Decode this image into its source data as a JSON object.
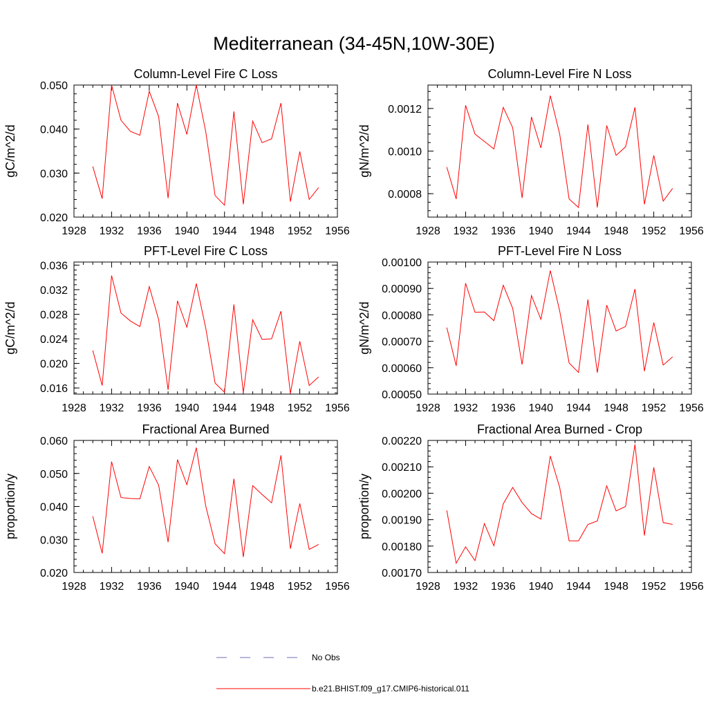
{
  "title": "Mediterranean (34-45N,10W-30E)",
  "colors": {
    "model": "#ff0000",
    "obs": "#6b6bb8"
  },
  "legend": [
    {
      "label": "No Obs",
      "style": "dashed",
      "color": "#6b6bb8"
    },
    {
      "label": "b.e21.BHIST.f09_g17.CMIP6-historical.011",
      "style": "solid",
      "color": "#ff0000"
    }
  ],
  "chart_data": [
    {
      "type": "line",
      "title": "Column-Level Fire C Loss",
      "ylabel": "gC/m^2/d",
      "xlim": [
        1928,
        1956
      ],
      "ylim": [
        0.02,
        0.05
      ],
      "xticks": [
        1928,
        1932,
        1936,
        1940,
        1944,
        1948,
        1952,
        1956
      ],
      "yticks": [
        0.02,
        0.03,
        0.04,
        0.05
      ],
      "ytick_labels": [
        "0.020",
        "0.030",
        "0.040",
        "0.050"
      ],
      "x": [
        1930,
        1931,
        1932,
        1933,
        1934,
        1935,
        1936,
        1937,
        1938,
        1939,
        1940,
        1941,
        1942,
        1943,
        1944,
        1945,
        1946,
        1947,
        1948,
        1949,
        1950,
        1951,
        1952,
        1953,
        1954
      ],
      "series": [
        {
          "name": "b.e21.BHIST.f09_g17.CMIP6-historical.011",
          "values": [
            0.0315,
            0.0242,
            0.05,
            0.042,
            0.0395,
            0.0386,
            0.0486,
            0.0428,
            0.0243,
            0.0459,
            0.0388,
            0.05,
            0.0395,
            0.0249,
            0.0227,
            0.044,
            0.0229,
            0.0418,
            0.0369,
            0.0378,
            0.0459,
            0.0235,
            0.0349,
            0.024,
            0.0267
          ]
        }
      ]
    },
    {
      "type": "line",
      "title": "Column-Level Fire N Loss",
      "ylabel": "gN/m^2/d",
      "xlim": [
        1928,
        1956
      ],
      "ylim": [
        0.00069,
        0.00131
      ],
      "xticks": [
        1928,
        1932,
        1936,
        1940,
        1944,
        1948,
        1952,
        1956
      ],
      "yticks": [
        0.0008,
        0.001,
        0.0012
      ],
      "ytick_labels": [
        "0.0008",
        "0.0010",
        "0.0012"
      ],
      "x": [
        1930,
        1931,
        1932,
        1933,
        1934,
        1935,
        1936,
        1937,
        1938,
        1939,
        1940,
        1941,
        1942,
        1943,
        1944,
        1945,
        1946,
        1947,
        1948,
        1949,
        1950,
        1951,
        1952,
        1953,
        1954
      ],
      "series": [
        {
          "name": "b.e21.BHIST.f09_g17.CMIP6-historical.011",
          "values": [
            0.000925,
            0.000775,
            0.001215,
            0.00108,
            0.001045,
            0.00101,
            0.001205,
            0.00111,
            0.00078,
            0.00116,
            0.001015,
            0.00126,
            0.00108,
            0.000775,
            0.000735,
            0.001125,
            0.000735,
            0.00112,
            0.00098,
            0.00102,
            0.001205,
            0.00075,
            0.00098,
            0.000765,
            0.000825
          ]
        }
      ]
    },
    {
      "type": "line",
      "title": "PFT-Level Fire C Loss",
      "ylabel": "gC/m^2/d",
      "xlim": [
        1928,
        1956
      ],
      "ylim": [
        0.015,
        0.0365
      ],
      "xticks": [
        1928,
        1932,
        1936,
        1940,
        1944,
        1948,
        1952,
        1956
      ],
      "yticks": [
        0.016,
        0.02,
        0.024,
        0.028,
        0.032,
        0.036
      ],
      "ytick_labels": [
        "0.016",
        "0.020",
        "0.024",
        "0.028",
        "0.032",
        "0.036"
      ],
      "x": [
        1930,
        1931,
        1932,
        1933,
        1934,
        1935,
        1936,
        1937,
        1938,
        1939,
        1940,
        1941,
        1942,
        1943,
        1944,
        1945,
        1946,
        1947,
        1948,
        1949,
        1950,
        1951,
        1952,
        1953,
        1954
      ],
      "series": [
        {
          "name": "b.e21.BHIST.f09_g17.CMIP6-historical.011",
          "values": [
            0.0221,
            0.0164,
            0.0343,
            0.0282,
            0.0269,
            0.026,
            0.0325,
            0.0271,
            0.0157,
            0.0302,
            0.0259,
            0.033,
            0.0258,
            0.0168,
            0.0153,
            0.0296,
            0.0152,
            0.0271,
            0.0239,
            0.024,
            0.0285,
            0.0151,
            0.0236,
            0.0164,
            0.0178
          ]
        }
      ]
    },
    {
      "type": "line",
      "title": "PFT-Level Fire N Loss",
      "ylabel": "gN/m^2/d",
      "xlim": [
        1928,
        1956
      ],
      "ylim": [
        0.0005,
        0.001
      ],
      "xticks": [
        1928,
        1932,
        1936,
        1940,
        1944,
        1948,
        1952,
        1956
      ],
      "yticks": [
        0.0005,
        0.0006,
        0.0007,
        0.0008,
        0.0009,
        0.001
      ],
      "ytick_labels": [
        "0.00050",
        "0.00060",
        "0.00070",
        "0.00080",
        "0.00090",
        "0.00100"
      ],
      "x": [
        1930,
        1931,
        1932,
        1933,
        1934,
        1935,
        1936,
        1937,
        1938,
        1939,
        1940,
        1941,
        1942,
        1943,
        1944,
        1945,
        1946,
        1947,
        1948,
        1949,
        1950,
        1951,
        1952,
        1953,
        1954
      ],
      "series": [
        {
          "name": "b.e21.BHIST.f09_g17.CMIP6-historical.011",
          "values": [
            0.000752,
            0.000607,
            0.00092,
            0.00081,
            0.000811,
            0.000778,
            0.000912,
            0.000825,
            0.000612,
            0.000873,
            0.000783,
            0.000968,
            0.000815,
            0.000618,
            0.000582,
            0.000858,
            0.000581,
            0.000837,
            0.000739,
            0.000756,
            0.000898,
            0.000587,
            0.000771,
            0.00061,
            0.000641
          ]
        }
      ]
    },
    {
      "type": "line",
      "title": "Fractional Area Burned",
      "ylabel": "proportion/y",
      "xlim": [
        1928,
        1956
      ],
      "ylim": [
        0.02,
        0.06
      ],
      "xticks": [
        1928,
        1932,
        1936,
        1940,
        1944,
        1948,
        1952,
        1956
      ],
      "yticks": [
        0.02,
        0.03,
        0.04,
        0.05,
        0.06
      ],
      "ytick_labels": [
        "0.020",
        "0.030",
        "0.040",
        "0.050",
        "0.060"
      ],
      "x": [
        1930,
        1931,
        1932,
        1933,
        1934,
        1935,
        1936,
        1937,
        1938,
        1939,
        1940,
        1941,
        1942,
        1943,
        1944,
        1945,
        1946,
        1947,
        1948,
        1949,
        1950,
        1951,
        1952,
        1953,
        1954
      ],
      "series": [
        {
          "name": "b.e21.BHIST.f09_g17.CMIP6-historical.011",
          "values": [
            0.037,
            0.0258,
            0.0536,
            0.0427,
            0.0424,
            0.0423,
            0.0521,
            0.0464,
            0.0292,
            0.0542,
            0.0466,
            0.0578,
            0.0402,
            0.0287,
            0.0257,
            0.0484,
            0.0247,
            0.0463,
            0.0436,
            0.0411,
            0.0555,
            0.0272,
            0.0409,
            0.027,
            0.0285
          ]
        }
      ]
    },
    {
      "type": "line",
      "title": "Fractional Area Burned - Crop",
      "ylabel": "proportion/y",
      "xlim": [
        1928,
        1956
      ],
      "ylim": [
        0.0017,
        0.0022
      ],
      "xticks": [
        1928,
        1932,
        1936,
        1940,
        1944,
        1948,
        1952,
        1956
      ],
      "yticks": [
        0.0017,
        0.0018,
        0.0019,
        0.002,
        0.0021,
        0.0022
      ],
      "ytick_labels": [
        "0.00170",
        "0.00180",
        "0.00190",
        "0.00200",
        "0.00210",
        "0.00220"
      ],
      "x": [
        1930,
        1931,
        1932,
        1933,
        1934,
        1935,
        1936,
        1937,
        1938,
        1939,
        1940,
        1941,
        1942,
        1943,
        1944,
        1945,
        1946,
        1947,
        1948,
        1949,
        1950,
        1951,
        1952,
        1953,
        1954
      ],
      "series": [
        {
          "name": "b.e21.BHIST.f09_g17.CMIP6-historical.011",
          "values": [
            0.001935,
            0.001735,
            0.001797,
            0.001745,
            0.001885,
            0.001801,
            0.00196,
            0.002022,
            0.001965,
            0.001923,
            0.001902,
            0.002141,
            0.002022,
            0.00182,
            0.00182,
            0.001882,
            0.001895,
            0.002028,
            0.001933,
            0.00195,
            0.002185,
            0.00184,
            0.002098,
            0.001889,
            0.001882
          ]
        }
      ]
    }
  ]
}
